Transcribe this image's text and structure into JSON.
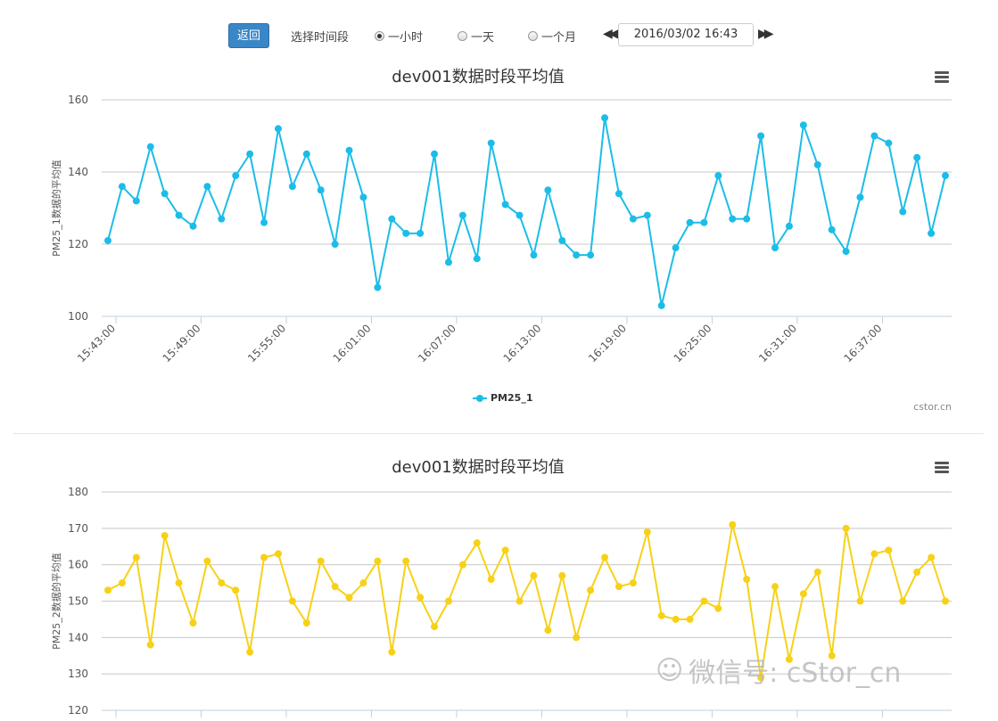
{
  "toolbar": {
    "back_label": "返回",
    "period_label": "选择时间段",
    "options": [
      {
        "label": "一小时",
        "checked": true
      },
      {
        "label": "一天",
        "checked": false
      },
      {
        "label": "一个月",
        "checked": false
      }
    ],
    "prev_icon": "double-left-arrow-icon",
    "next_icon": "double-right-arrow-icon",
    "date_value": "2016/03/02 16:43"
  },
  "chart_data": [
    {
      "type": "line",
      "title": "dev001数据时段平均值",
      "ylabel": "PM25_1数据的平均值",
      "xlabel": "",
      "ylim": [
        100,
        160
      ],
      "yticks": [
        100,
        120,
        140,
        160
      ],
      "xtick_labels": [
        "15:43:00",
        "15:49:00",
        "15:55:00",
        "16:01:00",
        "16:07:00",
        "16:13:00",
        "16:19:00",
        "16:25:00",
        "16:31:00",
        "16:37:00"
      ],
      "color": "#1bbde8",
      "legend": "bottom-center",
      "credit": "cstor.cn",
      "series": [
        {
          "name": "PM25_1",
          "values": [
            121,
            136,
            132,
            147,
            134,
            128,
            125,
            136,
            127,
            139,
            145,
            126,
            152,
            136,
            145,
            135,
            120,
            146,
            133,
            108,
            127,
            123,
            123,
            145,
            115,
            128,
            116,
            148,
            131,
            128,
            117,
            135,
            121,
            117,
            117,
            155,
            134,
            127,
            128,
            103,
            119,
            126,
            126,
            139,
            127,
            127,
            150,
            119,
            125,
            153,
            142,
            124,
            118,
            133,
            150,
            148,
            129,
            144,
            123,
            139
          ]
        }
      ]
    },
    {
      "type": "line",
      "title": "dev001数据时段平均值",
      "ylabel": "PM25_2数据的平均值",
      "xlabel": "",
      "ylim": [
        120,
        180
      ],
      "yticks": [
        120,
        130,
        140,
        150,
        160,
        170,
        180
      ],
      "color": "#f7d117",
      "series": [
        {
          "name": "PM25_2",
          "values": [
            153,
            155,
            162,
            138,
            168,
            155,
            144,
            161,
            155,
            153,
            136,
            162,
            163,
            150,
            144,
            161,
            154,
            151,
            155,
            161,
            136,
            161,
            151,
            143,
            150,
            160,
            166,
            156,
            164,
            150,
            157,
            142,
            157,
            140,
            153,
            162,
            154,
            155,
            169,
            146,
            145,
            145,
            150,
            148,
            171,
            156,
            129,
            154,
            134,
            152,
            158,
            135,
            170,
            150,
            163,
            164,
            150,
            158,
            162,
            150
          ]
        }
      ]
    }
  ],
  "watermark": "微信号: cStor_cn"
}
